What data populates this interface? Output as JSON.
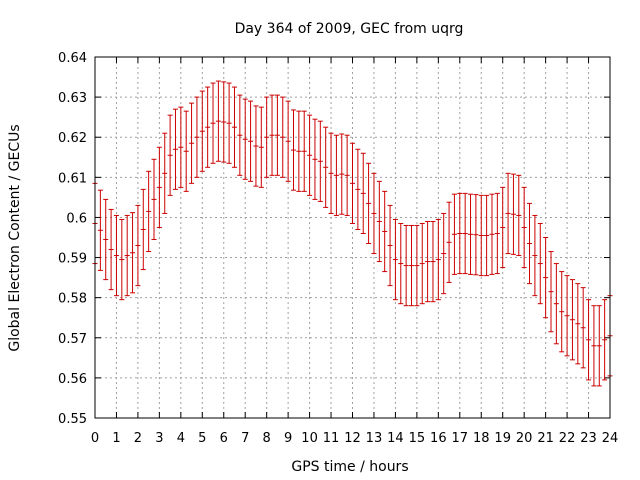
{
  "chart_data": {
    "type": "scatter",
    "title": "Day 364 of 2009, GEC from uqrg",
    "xlabel": "GPS time / hours",
    "ylabel": "Global Electron Content / GECUs",
    "xlim": [
      0,
      24
    ],
    "ylim": [
      0.55,
      0.64
    ],
    "xticks": [
      "0",
      "1",
      "2",
      "3",
      "4",
      "5",
      "6",
      "7",
      "8",
      "9",
      "10",
      "11",
      "12",
      "13",
      "14",
      "15",
      "16",
      "17",
      "18",
      "19",
      "20",
      "21",
      "22",
      "23",
      "24"
    ],
    "yticks": [
      "0.55",
      "0.56",
      "0.57",
      "0.58",
      "0.59",
      "0.6",
      "0.61",
      "0.62",
      "0.63",
      "0.64"
    ],
    "grid": true,
    "error_bar": 0.01,
    "series": [
      {
        "name": "GEC",
        "color": "#cc0000",
        "x": [
          0.0,
          0.25,
          0.5,
          0.75,
          1.0,
          1.25,
          1.5,
          1.75,
          2.0,
          2.25,
          2.5,
          2.75,
          3.0,
          3.25,
          3.5,
          3.75,
          4.0,
          4.25,
          4.5,
          4.75,
          5.0,
          5.25,
          5.5,
          5.75,
          6.0,
          6.25,
          6.5,
          6.75,
          7.0,
          7.25,
          7.5,
          7.75,
          8.0,
          8.25,
          8.5,
          8.75,
          9.0,
          9.25,
          9.5,
          9.75,
          10.0,
          10.25,
          10.5,
          10.75,
          11.0,
          11.25,
          11.5,
          11.75,
          12.0,
          12.25,
          12.5,
          12.75,
          13.0,
          13.25,
          13.5,
          13.75,
          14.0,
          14.25,
          14.5,
          14.75,
          15.0,
          15.25,
          15.5,
          15.75,
          16.0,
          16.25,
          16.5,
          16.75,
          17.0,
          17.25,
          17.5,
          17.75,
          18.0,
          18.25,
          18.5,
          18.75,
          19.0,
          19.25,
          19.5,
          19.75,
          20.0,
          20.25,
          20.5,
          20.75,
          21.0,
          21.25,
          21.5,
          21.75,
          22.0,
          22.25,
          22.5,
          22.75,
          23.0,
          23.25,
          23.5,
          23.75,
          24.0
        ],
        "y": [
          0.5985,
          0.5968,
          0.5945,
          0.592,
          0.5905,
          0.5895,
          0.5905,
          0.5912,
          0.593,
          0.597,
          0.6015,
          0.6045,
          0.6075,
          0.611,
          0.6155,
          0.617,
          0.6175,
          0.6165,
          0.6185,
          0.62,
          0.6215,
          0.6225,
          0.6235,
          0.624,
          0.6238,
          0.6235,
          0.6225,
          0.6205,
          0.6195,
          0.619,
          0.6178,
          0.6175,
          0.62,
          0.6205,
          0.6205,
          0.62,
          0.619,
          0.6168,
          0.6165,
          0.6165,
          0.6155,
          0.6145,
          0.614,
          0.6125,
          0.611,
          0.6105,
          0.6108,
          0.6105,
          0.6085,
          0.607,
          0.606,
          0.6035,
          0.601,
          0.599,
          0.5965,
          0.593,
          0.5895,
          0.5885,
          0.588,
          0.588,
          0.588,
          0.5885,
          0.589,
          0.589,
          0.5895,
          0.591,
          0.5938,
          0.5958,
          0.596,
          0.596,
          0.5958,
          0.5957,
          0.5955,
          0.5955,
          0.5958,
          0.596,
          0.5975,
          0.601,
          0.6008,
          0.6005,
          0.5975,
          0.5935,
          0.5905,
          0.5885,
          0.585,
          0.5815,
          0.5785,
          0.5765,
          0.5755,
          0.5745,
          0.5735,
          0.5725,
          0.5695,
          0.568,
          0.568,
          0.5695,
          0.5705
        ]
      }
    ]
  }
}
